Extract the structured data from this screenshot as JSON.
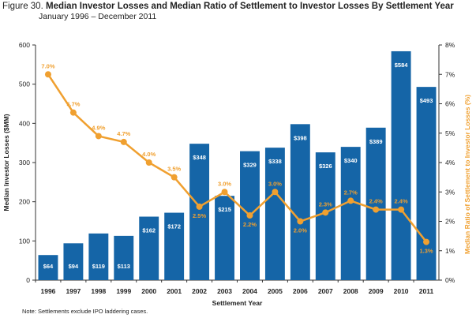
{
  "figure": {
    "label": "Figure 30.",
    "title": "Median Investor Losses and Median Ratio of Settlement to Investor Losses By Settlement Year",
    "subtitle": "January 1996 – December 2011",
    "note": "Note: Settlements exclude IPO laddering cases."
  },
  "chart_data": {
    "type": "bar",
    "categories": [
      "1996",
      "1997",
      "1998",
      "1999",
      "2000",
      "2001",
      "2002",
      "2003",
      "2004",
      "2005",
      "2006",
      "2007",
      "2008",
      "2009",
      "2010",
      "2011"
    ],
    "xlabel": "Settlement Year",
    "ylabel": "Median Investor Losses ($MM)",
    "y2label": "Median Ratio of Settlement to Investor Losses (%)",
    "ylim": [
      0,
      600
    ],
    "y2lim": [
      0,
      8
    ],
    "y_ticks": [
      "0",
      "100",
      "200",
      "300",
      "400",
      "500",
      "600"
    ],
    "y2_ticks": [
      "0%",
      "1%",
      "2%",
      "3%",
      "4%",
      "5%",
      "6%",
      "7%",
      "8%"
    ],
    "grid": false,
    "series": [
      {
        "type": "bar",
        "axis": "left",
        "values": [
          64,
          94,
          119,
          113,
          162,
          172,
          348,
          215,
          329,
          338,
          398,
          326,
          340,
          389,
          584,
          493
        ],
        "labels": [
          "$64",
          "$94",
          "$119",
          "$113",
          "$162",
          "$172",
          "$348",
          "$215",
          "$329",
          "$338",
          "$398",
          "$326",
          "$340",
          "$389",
          "$584",
          "$493"
        ]
      },
      {
        "type": "line",
        "axis": "right",
        "values": [
          7.0,
          5.7,
          4.9,
          4.7,
          4.0,
          3.5,
          2.5,
          3.0,
          2.2,
          3.0,
          2.0,
          2.3,
          2.7,
          2.4,
          2.4,
          1.3
        ],
        "labels": [
          "7.0%",
          "5.7%",
          "4.9%",
          "4.7%",
          "4.0%",
          "3.5%",
          "2.5%",
          "3.0%",
          "2.2%",
          "3.0%",
          "2.0%",
          "2.3%",
          "2.7%",
          "2.4%",
          "2.4%",
          "1.3%"
        ]
      }
    ],
    "colors": {
      "bar": "#1565a7",
      "line": "#f0a030",
      "label_on_bar": "#ffffff",
      "axis": "#333333"
    }
  }
}
